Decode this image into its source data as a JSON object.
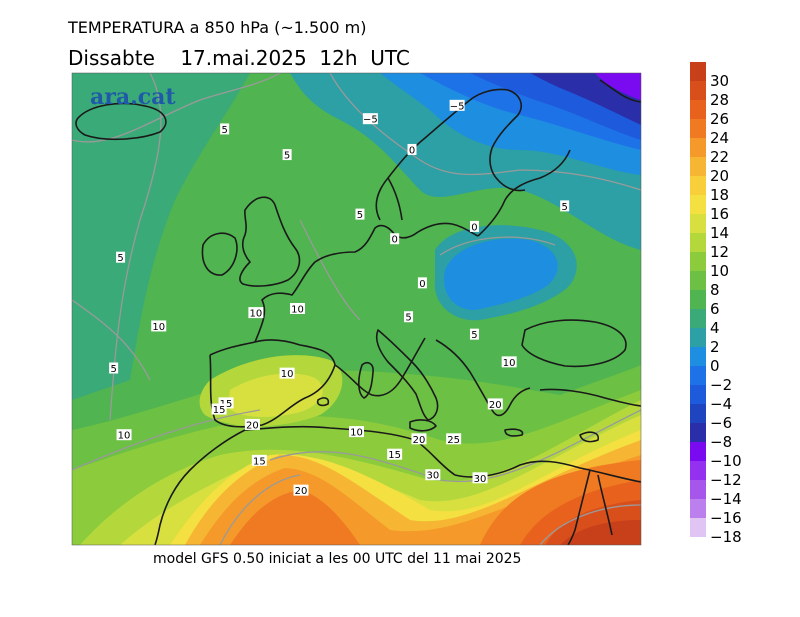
{
  "header": {
    "title": "TEMPERATURA a 850 hPa (~1.500 m)",
    "subtitle": "Dissabte    17.mai.2025  12h  UTC"
  },
  "footer": {
    "model_info": "model GFS 0.50 iniciat a les 00 UTC del 11 mai 2025"
  },
  "watermark": {
    "text": "ara.cat",
    "color": "#1f5aa8"
  },
  "legend": {
    "labels": [
      "30",
      "28",
      "26",
      "24",
      "22",
      "20",
      "18",
      "16",
      "14",
      "12",
      "10",
      "8",
      "6",
      "4",
      "2",
      "0",
      "−2",
      "−4",
      "−6",
      "−8",
      "−10",
      "−12",
      "−14",
      "−16",
      "−18"
    ],
    "colors": [
      "#c8401a",
      "#d94f1c",
      "#e8621e",
      "#f07a22",
      "#f4992a",
      "#f6b532",
      "#f8cf3a",
      "#f4e040",
      "#d8e040",
      "#b4d83c",
      "#8ccc3c",
      "#6cc044",
      "#50b450",
      "#3aaa78",
      "#2ca0a4",
      "#1e8ee0",
      "#1e72e8",
      "#1e5adc",
      "#1e44c0",
      "#2a2ea8",
      "#7a0af0",
      "#9430f0",
      "#a656ea",
      "#bc80ee",
      "#e0c4f4"
    ]
  },
  "contour_labels": [
    {
      "text": "5",
      "lat": 66.5,
      "lon": -14
    },
    {
      "text": "5",
      "lat": 64.0,
      "lon": -5
    },
    {
      "text": "5",
      "lat": 58.2,
      "lon": 5.5
    },
    {
      "text": "5",
      "lat": 59.0,
      "lon": 35
    },
    {
      "text": "5",
      "lat": 54.0,
      "lon": -29
    },
    {
      "text": "5",
      "lat": 43.2,
      "lon": -30
    },
    {
      "text": "5",
      "lat": 48.2,
      "lon": 12.5
    },
    {
      "text": "5",
      "lat": 46.5,
      "lon": 22
    },
    {
      "text": "−5",
      "lat": 67.5,
      "lon": 7
    },
    {
      "text": "−5",
      "lat": 68.8,
      "lon": 19.5
    },
    {
      "text": "0",
      "lat": 64.5,
      "lon": 13
    },
    {
      "text": "0",
      "lat": 55.8,
      "lon": 10.5
    },
    {
      "text": "0",
      "lat": 57.0,
      "lon": 22
    },
    {
      "text": "0",
      "lat": 51.5,
      "lon": 14.5
    },
    {
      "text": "10",
      "lat": 47.3,
      "lon": -23.5
    },
    {
      "text": "10",
      "lat": 48.6,
      "lon": -9.5
    },
    {
      "text": "10",
      "lat": 49.0,
      "lon": -3.5
    },
    {
      "text": "10",
      "lat": 42.7,
      "lon": -5
    },
    {
      "text": "10",
      "lat": 37.0,
      "lon": 5
    },
    {
      "text": "10",
      "lat": 43.8,
      "lon": 27
    },
    {
      "text": "10",
      "lat": 36.7,
      "lon": -28.5
    },
    {
      "text": "15",
      "lat": 39.8,
      "lon": -13.8
    },
    {
      "text": "15",
      "lat": 39.2,
      "lon": -14.8
    },
    {
      "text": "15",
      "lat": 34.8,
      "lon": 10.5
    },
    {
      "text": "15",
      "lat": 34.2,
      "lon": -9
    },
    {
      "text": "20",
      "lat": 37.7,
      "lon": -10
    },
    {
      "text": "20",
      "lat": 31.3,
      "lon": -3
    },
    {
      "text": "20",
      "lat": 36.3,
      "lon": 14
    },
    {
      "text": "20",
      "lat": 39.7,
      "lon": 25
    },
    {
      "text": "25",
      "lat": 36.3,
      "lon": 19
    },
    {
      "text": "30",
      "lat": 32.8,
      "lon": 16
    },
    {
      "text": "30",
      "lat": 32.5,
      "lon": 22.8
    }
  ]
}
